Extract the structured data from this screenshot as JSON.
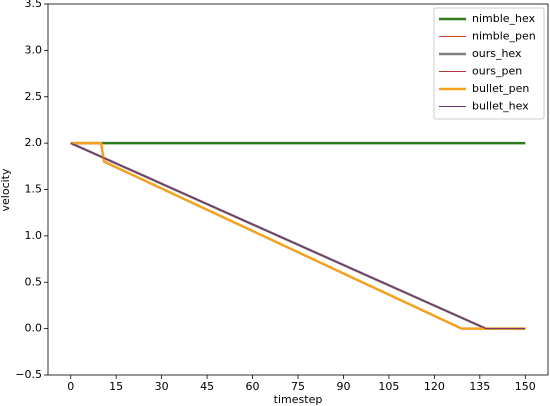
{
  "chart_data": {
    "type": "line",
    "xlabel": "timestep",
    "ylabel": "velocity",
    "x": [
      0,
      10,
      11,
      129,
      137,
      150
    ],
    "series": [
      {
        "name": "nimble_hex",
        "color": "#2f7a1e",
        "linewidth": 2.5,
        "values": [
          2.0,
          2.0,
          2.0,
          2.0,
          2.0,
          2.0
        ]
      },
      {
        "name": "nimble_pen",
        "color": "#d0401a",
        "linewidth": 1,
        "values": [
          2.0,
          2.0,
          1.8,
          0.0,
          0.0,
          0.0
        ]
      },
      {
        "name": "ours_hex",
        "color": "#808080",
        "linewidth": 2.5,
        "values": [
          2.0,
          1.854,
          1.839,
          0.117,
          0.0,
          0.0
        ]
      },
      {
        "name": "ours_pen",
        "color": "#a8343c",
        "linewidth": 1,
        "values": [
          2.0,
          1.854,
          1.839,
          0.117,
          0.0,
          0.0
        ]
      },
      {
        "name": "bullet_pen",
        "color": "#f5a01e",
        "linewidth": 2.5,
        "values": [
          2.0,
          2.0,
          1.8,
          0.0,
          0.0,
          0.0
        ]
      },
      {
        "name": "bullet_hex",
        "color": "#6b2f6f",
        "linewidth": 1,
        "values": [
          2.0,
          1.854,
          1.839,
          0.117,
          0.0,
          0.0
        ]
      }
    ],
    "xlim": [
      -7.5,
      157.5
    ],
    "ylim": [
      -0.5,
      3.5
    ],
    "xticks": [
      0,
      15,
      30,
      45,
      60,
      75,
      90,
      105,
      120,
      135,
      150
    ],
    "yticks": [
      {
        "value": -0.5,
        "label": "−0.5"
      },
      {
        "value": 0,
        "label": "0.0"
      },
      0.5,
      {
        "value": 1,
        "label": "1.0"
      },
      1.5,
      {
        "value": 2,
        "label": "2.0"
      },
      2.5,
      {
        "value": 3,
        "label": "3.0"
      },
      3.5
    ],
    "legend": "upper right",
    "grid": false
  }
}
